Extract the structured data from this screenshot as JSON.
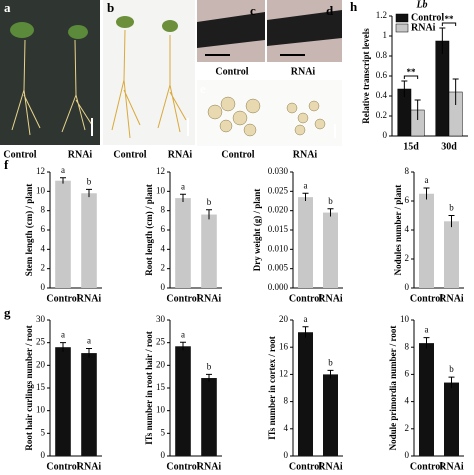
{
  "photos": [
    {
      "letter": "a",
      "labels": [
        "Control",
        "RNAi"
      ]
    },
    {
      "letter": "b",
      "labels": [
        "Control",
        "RNAi"
      ]
    },
    {
      "letter": "c",
      "labels": [
        "Control"
      ]
    },
    {
      "letter": "d",
      "labels": [
        "RNAi"
      ]
    },
    {
      "letter": "e",
      "labels": [
        "Control",
        "RNAi"
      ]
    }
  ],
  "chart_data": [
    {
      "type": "grouped_bar",
      "panel": "h",
      "title": "Lb",
      "y_label": "Relative transcript levels",
      "categories": [
        "15d",
        "30d"
      ],
      "series": [
        {
          "name": "Control",
          "color": "#111111",
          "values": [
            0.47,
            0.95
          ],
          "errors": [
            0.08,
            0.13
          ]
        },
        {
          "name": "RNAi",
          "color": "#c8c8c8",
          "values": [
            0.26,
            0.44
          ],
          "errors": [
            0.1,
            0.13
          ]
        }
      ],
      "annotations": [
        "**",
        "**"
      ],
      "legend": "upper left",
      "ylim": [
        0,
        1.2
      ],
      "yticks": [
        0,
        0.2,
        0.4,
        0.6,
        0.8,
        1,
        1.2
      ]
    },
    {
      "type": "bar",
      "panel": "f",
      "y_label": "Stem length (cm) / plant",
      "categories": [
        "Control",
        "RNAi"
      ],
      "values": [
        11.1,
        9.8
      ],
      "errors": [
        0.3,
        0.4
      ],
      "letters": [
        "a",
        "b"
      ],
      "color": "#c8c8c8",
      "ylim": [
        0,
        12
      ],
      "yticks": [
        0,
        2,
        4,
        6,
        8,
        10,
        12
      ]
    },
    {
      "type": "bar",
      "y_label": "Root length (cm) / plant",
      "categories": [
        "Control",
        "RNAi"
      ],
      "values": [
        9.3,
        7.6
      ],
      "errors": [
        0.4,
        0.5
      ],
      "letters": [
        "a",
        "b"
      ],
      "color": "#c8c8c8",
      "ylim": [
        0,
        12
      ],
      "yticks": [
        0,
        2,
        4,
        6,
        8,
        10,
        12
      ]
    },
    {
      "type": "bar",
      "y_label": "Dry weight (g) / plant",
      "categories": [
        "Control",
        "RNAi"
      ],
      "values": [
        0.0235,
        0.0195
      ],
      "errors": [
        0.001,
        0.001
      ],
      "letters": [
        "a",
        "b"
      ],
      "color": "#c8c8c8",
      "ylim": [
        0,
        0.03
      ],
      "yticks": [
        {
          "value": 0,
          "label": "0.000"
        },
        {
          "value": 0.005,
          "label": "0.005"
        },
        {
          "value": 0.01,
          "label": "0.010"
        },
        {
          "value": 0.015,
          "label": "0.015"
        },
        {
          "value": 0.02,
          "label": "0.020"
        },
        {
          "value": 0.025,
          "label": "0.025"
        },
        {
          "value": 0.03,
          "label": "0.030"
        }
      ]
    },
    {
      "type": "bar",
      "y_label": "Nodules number / plant",
      "categories": [
        "Control",
        "RNAi"
      ],
      "values": [
        6.5,
        4.6
      ],
      "errors": [
        0.4,
        0.4
      ],
      "letters": [
        "a",
        "b"
      ],
      "color": "#c8c8c8",
      "ylim": [
        0,
        8
      ],
      "yticks": [
        0,
        2,
        4,
        6,
        8
      ]
    },
    {
      "type": "bar",
      "panel": "g",
      "y_label": "Root hair curlings number / root",
      "categories": [
        "Control",
        "RNAi"
      ],
      "values": [
        24,
        22.7
      ],
      "errors": [
        1,
        1
      ],
      "letters": [
        "a",
        "a"
      ],
      "color": "#111111",
      "ylim": [
        0,
        30
      ],
      "yticks": [
        0,
        5,
        10,
        15,
        20,
        25,
        30
      ]
    },
    {
      "type": "bar",
      "y_label": "ITs number in root hair / root",
      "categories": [
        "Control",
        "RNAi"
      ],
      "values": [
        24.2,
        17.2
      ],
      "errors": [
        0.9,
        0.8
      ],
      "letters": [
        "a",
        "b"
      ],
      "color": "#111111",
      "ylim": [
        0,
        30
      ],
      "yticks": [
        0,
        5,
        10,
        15,
        20,
        25,
        30
      ]
    },
    {
      "type": "bar",
      "y_label": "ITs number in cortex / root",
      "categories": [
        "Control",
        "RNAi"
      ],
      "values": [
        18.2,
        12
      ],
      "errors": [
        0.8,
        0.6
      ],
      "letters": [
        "a",
        "b"
      ],
      "color": "#111111",
      "ylim": [
        0,
        20
      ],
      "yticks": [
        0,
        4,
        8,
        12,
        16,
        20
      ]
    },
    {
      "type": "bar",
      "y_label": "Nodule primordia number / root",
      "categories": [
        "Control",
        "RNAi"
      ],
      "values": [
        8.3,
        5.4
      ],
      "errors": [
        0.4,
        0.4
      ],
      "letters": [
        "a",
        "b"
      ],
      "color": "#111111",
      "ylim": [
        0,
        10
      ],
      "yticks": [
        0,
        2,
        4,
        6,
        8,
        10
      ]
    }
  ]
}
